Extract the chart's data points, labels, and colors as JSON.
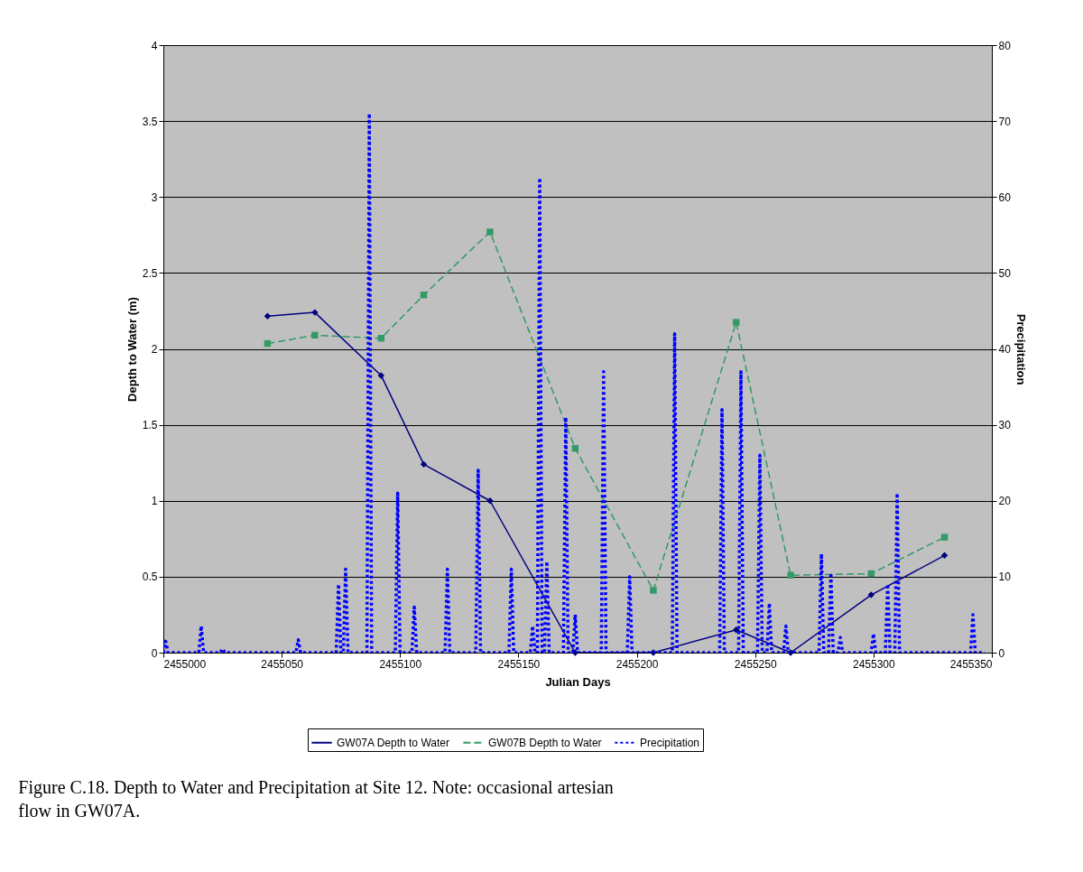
{
  "chart_data": {
    "type": "line",
    "xlabel": "Julian Days",
    "ylabel": "Depth to Water (m)",
    "y2label": "Precipitation",
    "xlim": [
      2455000,
      2455350
    ],
    "xticks": [
      2455000,
      2455050,
      2455100,
      2455150,
      2455200,
      2455250,
      2455300,
      2455350
    ],
    "ylim": [
      0,
      4
    ],
    "yticks": [
      0,
      0.5,
      1,
      1.5,
      2,
      2.5,
      3,
      3.5,
      4
    ],
    "y2lim": [
      0,
      80
    ],
    "y2ticks": [
      0,
      10,
      20,
      30,
      40,
      50,
      60,
      70,
      80
    ],
    "grid": "y",
    "legend": "bottom",
    "annotations": [
      "Figure C.18.  Depth to Water and Precipitation at Site 12.  Note: occasional artesian flow in GW07A."
    ],
    "series": [
      {
        "name": "GW07A Depth to Water",
        "color": "#000080",
        "marker": "diamond",
        "line_style": "solid",
        "x": [
          2455044,
          2455064,
          2455092,
          2455110,
          2455138,
          2455174,
          2455207,
          2455242,
          2455265,
          2455299,
          2455330
        ],
        "values": [
          2.215,
          2.24,
          1.825,
          1.24,
          1.0,
          0.0,
          0.0,
          0.15,
          0.0,
          0.38,
          0.64
        ]
      },
      {
        "name": "GW07B Depth to Water",
        "color": "#339966",
        "marker": "square",
        "line_style": "dashed",
        "x": [
          2455044,
          2455064,
          2455092,
          2455110,
          2455138,
          2455174,
          2455207,
          2455242,
          2455265,
          2455299,
          2455330
        ],
        "values": [
          2.035,
          2.09,
          2.07,
          2.355,
          2.77,
          1.345,
          0.41,
          2.175,
          0.51,
          0.52,
          0.76
        ]
      },
      {
        "name": "Precipitation",
        "color": "#0000ff",
        "marker": "none",
        "line_style": "dotted",
        "axis": "y2",
        "x": [
          2455000,
          2455001,
          2455002,
          2455015,
          2455016,
          2455017,
          2455024,
          2455025,
          2455026,
          2455056,
          2455057,
          2455058,
          2455073,
          2455074,
          2455075,
          2455076,
          2455077,
          2455078,
          2455086,
          2455087,
          2455088,
          2455098,
          2455099,
          2455100,
          2455105,
          2455106,
          2455107,
          2455119,
          2455120,
          2455121,
          2455132,
          2455133,
          2455134,
          2455146,
          2455147,
          2455148,
          2455155,
          2455156,
          2455157,
          2455158,
          2455159,
          2455160,
          2455161,
          2455162,
          2455163,
          2455169,
          2455170,
          2455171,
          2455173,
          2455174,
          2455175,
          2455185,
          2455186,
          2455187,
          2455196,
          2455197,
          2455198,
          2455215,
          2455216,
          2455217,
          2455235,
          2455236,
          2455237,
          2455243,
          2455244,
          2455245,
          2455251,
          2455252,
          2455253,
          2455255,
          2455256,
          2455257,
          2455262,
          2455263,
          2455264,
          2455277,
          2455278,
          2455279,
          2455281,
          2455282,
          2455283,
          2455285,
          2455286,
          2455287,
          2455299,
          2455300,
          2455301,
          2455305,
          2455306,
          2455307,
          2455309,
          2455310,
          2455311,
          2455341,
          2455342,
          2455343,
          2455347
        ],
        "values": [
          0,
          1.5,
          0,
          0,
          3.5,
          0,
          0,
          0.5,
          0,
          0,
          1.7,
          0,
          0,
          9,
          0,
          0,
          11,
          0,
          0,
          71,
          0,
          0,
          21,
          0,
          0,
          6,
          0,
          0,
          11,
          0,
          0,
          24,
          0,
          0,
          11,
          0,
          0,
          3.5,
          0,
          0,
          62.5,
          0,
          0,
          12,
          0,
          0,
          31,
          0,
          0,
          5,
          0,
          0,
          37,
          0,
          0,
          10,
          0,
          0,
          42,
          0,
          0,
          32,
          0,
          0,
          37,
          0,
          0,
          26,
          0,
          0,
          6.5,
          0,
          0,
          3.5,
          0,
          0,
          13,
          0,
          0,
          10.5,
          0,
          0,
          2,
          0,
          0,
          2.5,
          0,
          0,
          9,
          0,
          0,
          21,
          0,
          0,
          5,
          0,
          0
        ]
      }
    ]
  }
}
